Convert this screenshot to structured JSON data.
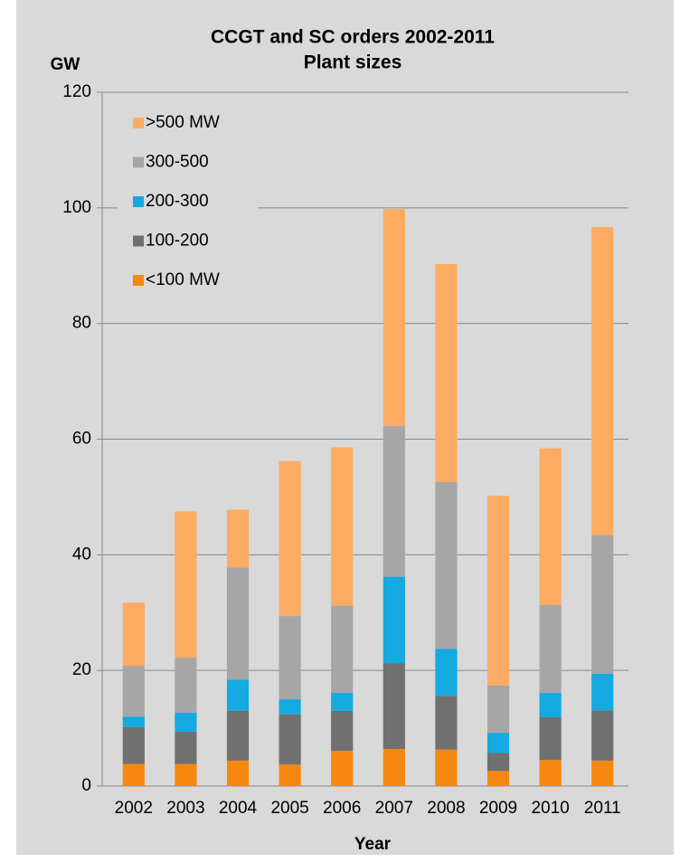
{
  "chart_data": {
    "type": "stacked_bar",
    "title": "CCGT and SC orders 2002-2011",
    "subtitle": "Plant sizes",
    "y_label": "GW",
    "x_label": "Year",
    "categories": [
      "2002",
      "2003",
      "2004",
      "2005",
      "2006",
      "2007",
      "2008",
      "2009",
      "2010",
      "2011"
    ],
    "series": [
      {
        "name": "<100 MW",
        "color": "#f7880f",
        "values": [
          3.8,
          3.8,
          4.4,
          3.7,
          6.1,
          6.4,
          6.3,
          2.6,
          4.5,
          4.4
        ]
      },
      {
        "name": "100-200",
        "color": "#707070",
        "values": [
          6.4,
          5.6,
          8.6,
          8.7,
          6.9,
          14.8,
          9.3,
          3.1,
          7.4,
          8.7
        ]
      },
      {
        "name": "200-300",
        "color": "#14a9e0",
        "values": [
          1.8,
          3.3,
          5.4,
          2.6,
          3.1,
          15.0,
          8.1,
          3.5,
          4.2,
          6.3
        ]
      },
      {
        "name": "300-500",
        "color": "#a6a6a6",
        "values": [
          8.8,
          9.5,
          19.4,
          14.4,
          15.1,
          26.1,
          28.9,
          8.2,
          15.2,
          24.0
        ]
      },
      {
        "name": ">500 MW",
        "color": "#fbab62",
        "values": [
          10.9,
          25.3,
          10.0,
          26.8,
          27.4,
          37.5,
          37.7,
          32.8,
          27.1,
          53.3
        ]
      }
    ],
    "ylim": [
      0,
      120
    ],
    "yticks": [
      0,
      20,
      40,
      60,
      80,
      100,
      120
    ],
    "grid": true,
    "legend": "top-left"
  }
}
